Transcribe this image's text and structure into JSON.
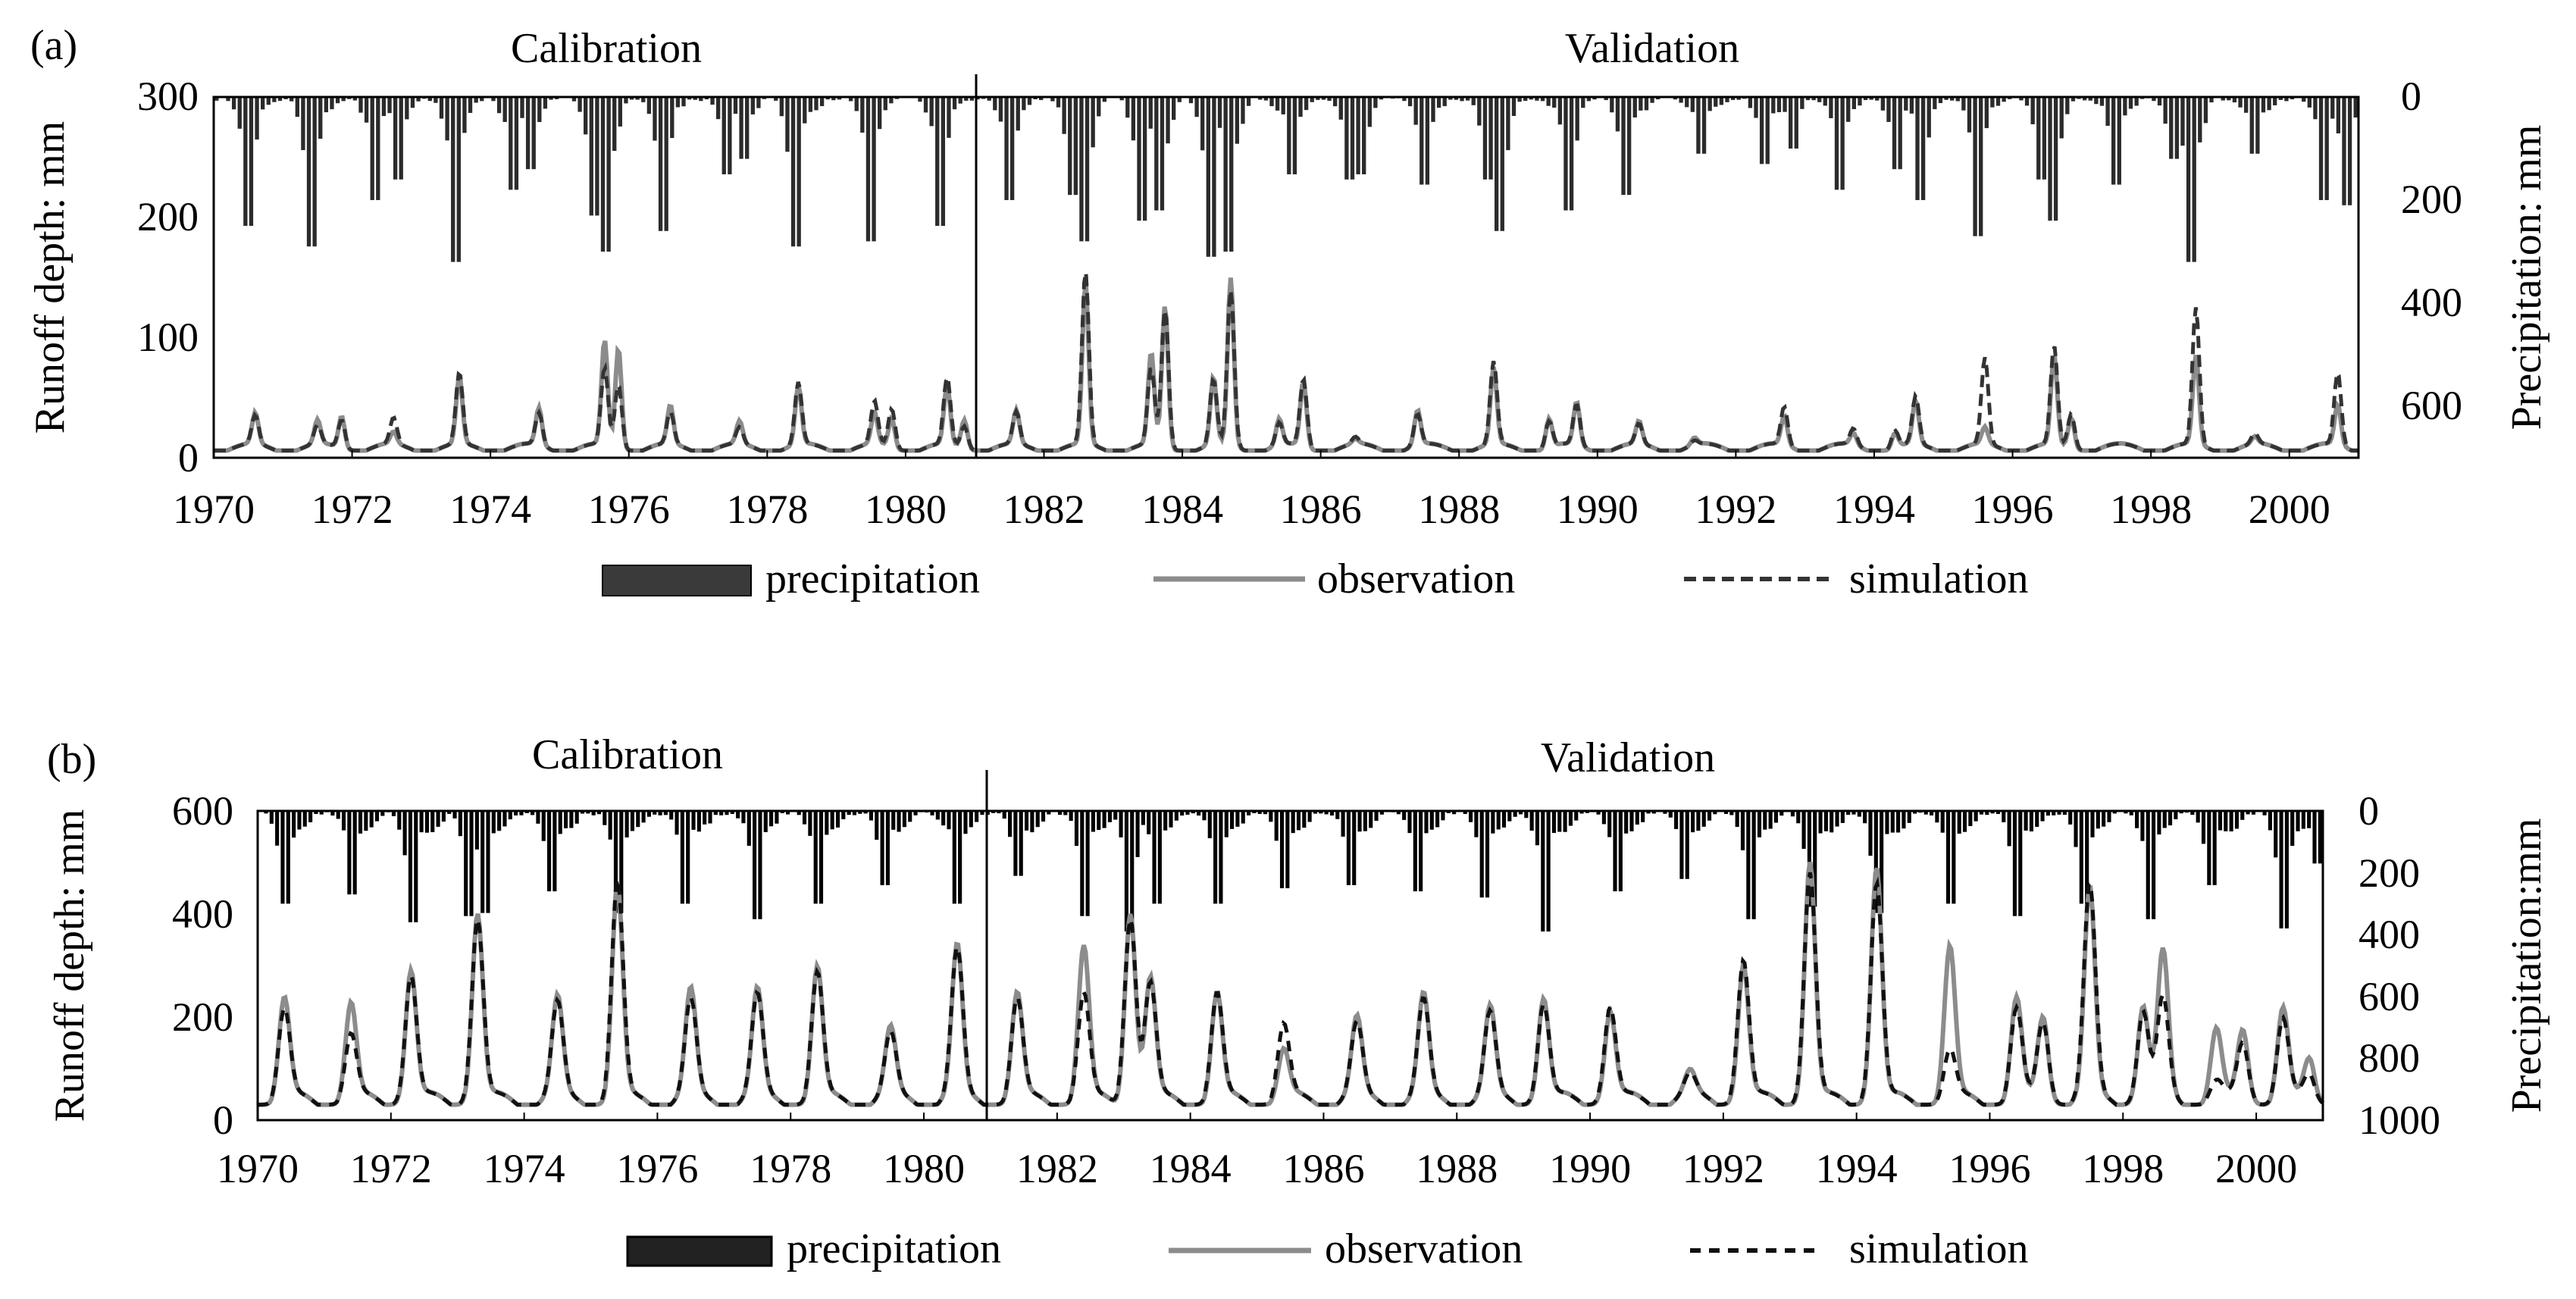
{
  "chart_data": [
    {
      "type": "bar+line",
      "panel_label": "(a)",
      "period_labels": {
        "calibration": "Calibration",
        "validation": "Validation"
      },
      "split_year": 1981,
      "x_range": [
        1970,
        2001
      ],
      "x_ticks": [
        "1970",
        "1972",
        "1974",
        "1976",
        "1978",
        "1980",
        "1982",
        "1984",
        "1986",
        "1988",
        "1990",
        "1992",
        "1994",
        "1996",
        "1998",
        "2000"
      ],
      "ylabel": "Runoff depth: mm",
      "ylim": [
        0,
        300
      ],
      "y_ticks": [
        "0",
        "100",
        "200",
        "300"
      ],
      "y2label": "Precipitation: mm",
      "y2lim": [
        0,
        700
      ],
      "y2_inverted": true,
      "y2_ticks": [
        "0",
        "200",
        "400",
        "600"
      ],
      "legend": {
        "precipitation": "precipitation",
        "observation": "observation",
        "simulation": "simulation"
      },
      "colors": {
        "bar": "#2b2b2b",
        "observation": "#8c8c8c",
        "simulation": "#333333",
        "legend_bar": "#3a3a3a"
      },
      "series": {
        "precipitation_peaks": [
          [
            1970.5,
            250
          ],
          [
            1971.4,
            290
          ],
          [
            1972.3,
            200
          ],
          [
            1972.7,
            160
          ],
          [
            1973.5,
            320
          ],
          [
            1974.3,
            180
          ],
          [
            1974.6,
            140
          ],
          [
            1975.5,
            230
          ],
          [
            1975.7,
            300
          ],
          [
            1976.5,
            260
          ],
          [
            1977.4,
            150
          ],
          [
            1977.7,
            120
          ],
          [
            1978.4,
            290
          ],
          [
            1979.5,
            280
          ],
          [
            1980.5,
            250
          ],
          [
            1981.5,
            200
          ],
          [
            1982.4,
            190
          ],
          [
            1982.6,
            280
          ],
          [
            1983.4,
            240
          ],
          [
            1983.7,
            220
          ],
          [
            1984.4,
            310
          ],
          [
            1984.7,
            300
          ],
          [
            1985.6,
            150
          ],
          [
            1986.4,
            160
          ],
          [
            1986.6,
            150
          ],
          [
            1987.5,
            170
          ],
          [
            1988.4,
            160
          ],
          [
            1988.6,
            260
          ],
          [
            1989.6,
            220
          ],
          [
            1990.4,
            190
          ],
          [
            1991.5,
            110
          ],
          [
            1992.4,
            130
          ],
          [
            1992.8,
            100
          ],
          [
            1993.5,
            180
          ],
          [
            1994.3,
            140
          ],
          [
            1994.7,
            200
          ],
          [
            1995.5,
            270
          ],
          [
            1996.4,
            160
          ],
          [
            1996.6,
            240
          ],
          [
            1997.5,
            170
          ],
          [
            1998.3,
            120
          ],
          [
            1998.6,
            320
          ],
          [
            1999.5,
            110
          ],
          [
            2000.5,
            200
          ],
          [
            2000.8,
            210
          ]
        ],
        "flow_peaks": [
          [
            1970.6,
            32,
            30
          ],
          [
            1971.5,
            26,
            22
          ],
          [
            1971.85,
            33,
            30
          ],
          [
            1972.6,
            16,
            28
          ],
          [
            1973.55,
            62,
            65
          ],
          [
            1974.7,
            37,
            33
          ],
          [
            1975.65,
            93,
            70
          ],
          [
            1975.85,
            90,
            60
          ],
          [
            1976.6,
            38,
            33
          ],
          [
            1977.6,
            25,
            20
          ],
          [
            1978.45,
            55,
            58
          ],
          [
            1979.55,
            32,
            42
          ],
          [
            1979.8,
            30,
            38
          ],
          [
            1980.6,
            55,
            62
          ],
          [
            1980.85,
            30,
            25
          ],
          [
            1981.6,
            34,
            33
          ],
          [
            1982.6,
            140,
            150
          ],
          [
            1983.55,
            82,
            70
          ],
          [
            1983.75,
            123,
            120
          ],
          [
            1984.45,
            62,
            60
          ],
          [
            1984.7,
            145,
            135
          ],
          [
            1985.4,
            28,
            25
          ],
          [
            1985.75,
            60,
            62
          ],
          [
            1986.5,
            10,
            12
          ],
          [
            1987.4,
            35,
            32
          ],
          [
            1988.5,
            70,
            75
          ],
          [
            1989.3,
            30,
            28
          ],
          [
            1989.7,
            42,
            40
          ],
          [
            1990.6,
            25,
            23
          ],
          [
            1991.4,
            12,
            10
          ],
          [
            1992.7,
            30,
            38
          ],
          [
            1993.7,
            16,
            20
          ],
          [
            1994.3,
            18,
            20
          ],
          [
            1994.6,
            42,
            46
          ],
          [
            1995.6,
            20,
            78
          ],
          [
            1996.6,
            80,
            88
          ],
          [
            1996.85,
            32,
            35
          ],
          [
            1998.65,
            80,
            120
          ],
          [
            1999.5,
            12,
            15
          ],
          [
            2000.7,
            40,
            67
          ]
        ]
      }
    },
    {
      "type": "bar+line",
      "panel_label": "(b)",
      "period_labels": {
        "calibration": "Calibration",
        "validation": "Validation"
      },
      "split_year": 1981,
      "x_range": [
        1970,
        2001
      ],
      "x_ticks": [
        "1970",
        "1972",
        "1974",
        "1976",
        "1978",
        "1980",
        "1982",
        "1984",
        "1986",
        "1988",
        "1990",
        "1992",
        "1994",
        "1996",
        "1998",
        "2000"
      ],
      "ylabel": "Runoff depth: mm",
      "ylim": [
        0,
        600
      ],
      "y_ticks": [
        "0",
        "200",
        "400",
        "600"
      ],
      "y2label": "Precipitation:mm",
      "y2lim": [
        0,
        1000
      ],
      "y2_inverted": true,
      "y2_ticks": [
        "0",
        "200",
        "400",
        "600",
        "800",
        "1000"
      ],
      "legend": {
        "precipitation": "precipitation",
        "observation": "observation",
        "simulation": "simulation"
      },
      "colors": {
        "bar": "#000000",
        "observation": "#8c8c8c",
        "simulation": "#111111",
        "legend_bar": "#222222"
      },
      "series": {
        "precipitation_peaks": [
          [
            1970.4,
            300
          ],
          [
            1971.4,
            270
          ],
          [
            1972.3,
            360
          ],
          [
            1973.2,
            340
          ],
          [
            1973.4,
            330
          ],
          [
            1974.4,
            260
          ],
          [
            1975.4,
            330
          ],
          [
            1976.4,
            300
          ],
          [
            1977.5,
            350
          ],
          [
            1978.4,
            300
          ],
          [
            1979.4,
            240
          ],
          [
            1980.5,
            300
          ],
          [
            1981.4,
            210
          ],
          [
            1982.4,
            340
          ],
          [
            1983.1,
            390
          ],
          [
            1983.5,
            300
          ],
          [
            1984.4,
            300
          ],
          [
            1985.4,
            250
          ],
          [
            1986.4,
            240
          ],
          [
            1987.4,
            260
          ],
          [
            1988.4,
            280
          ],
          [
            1989.3,
            390
          ],
          [
            1990.4,
            260
          ],
          [
            1991.4,
            220
          ],
          [
            1992.4,
            350
          ],
          [
            1993.3,
            310
          ],
          [
            1994.3,
            330
          ],
          [
            1995.4,
            300
          ],
          [
            1996.4,
            340
          ],
          [
            1997.4,
            300
          ],
          [
            1998.4,
            350
          ],
          [
            1999.3,
            240
          ],
          [
            2000.4,
            380
          ],
          [
            2000.9,
            170
          ]
        ],
        "flow_peaks": [
          [
            1970.4,
            220,
            200
          ],
          [
            1971.4,
            210,
            150
          ],
          [
            1972.3,
            280,
            270
          ],
          [
            1973.3,
            390,
            380
          ],
          [
            1974.5,
            220,
            210
          ],
          [
            1975.4,
            440,
            450
          ],
          [
            1976.5,
            235,
            215
          ],
          [
            1977.5,
            235,
            225
          ],
          [
            1978.4,
            280,
            270
          ],
          [
            1979.5,
            160,
            150
          ],
          [
            1980.5,
            320,
            315
          ],
          [
            1981.4,
            230,
            220
          ],
          [
            1982.4,
            320,
            230
          ],
          [
            1983.1,
            400,
            390
          ],
          [
            1983.4,
            260,
            250
          ],
          [
            1984.4,
            230,
            230
          ],
          [
            1985.4,
            120,
            170
          ],
          [
            1986.5,
            180,
            170
          ],
          [
            1987.5,
            225,
            215
          ],
          [
            1988.5,
            200,
            190
          ],
          [
            1989.3,
            225,
            215
          ],
          [
            1990.3,
            200,
            210
          ],
          [
            1991.5,
            75,
            70
          ],
          [
            1992.3,
            290,
            300
          ],
          [
            1993.3,
            490,
            470
          ],
          [
            1994.3,
            480,
            450
          ],
          [
            1995.4,
            320,
            120
          ],
          [
            1996.4,
            220,
            200
          ],
          [
            1996.8,
            190,
            180
          ],
          [
            1997.5,
            430,
            440
          ],
          [
            1998.3,
            210,
            200
          ],
          [
            1998.6,
            310,
            220
          ],
          [
            1999.4,
            160,
            60
          ],
          [
            1999.8,
            165,
            140
          ],
          [
            2000.4,
            200,
            180
          ],
          [
            2000.8,
            110,
            80
          ]
        ]
      }
    }
  ]
}
